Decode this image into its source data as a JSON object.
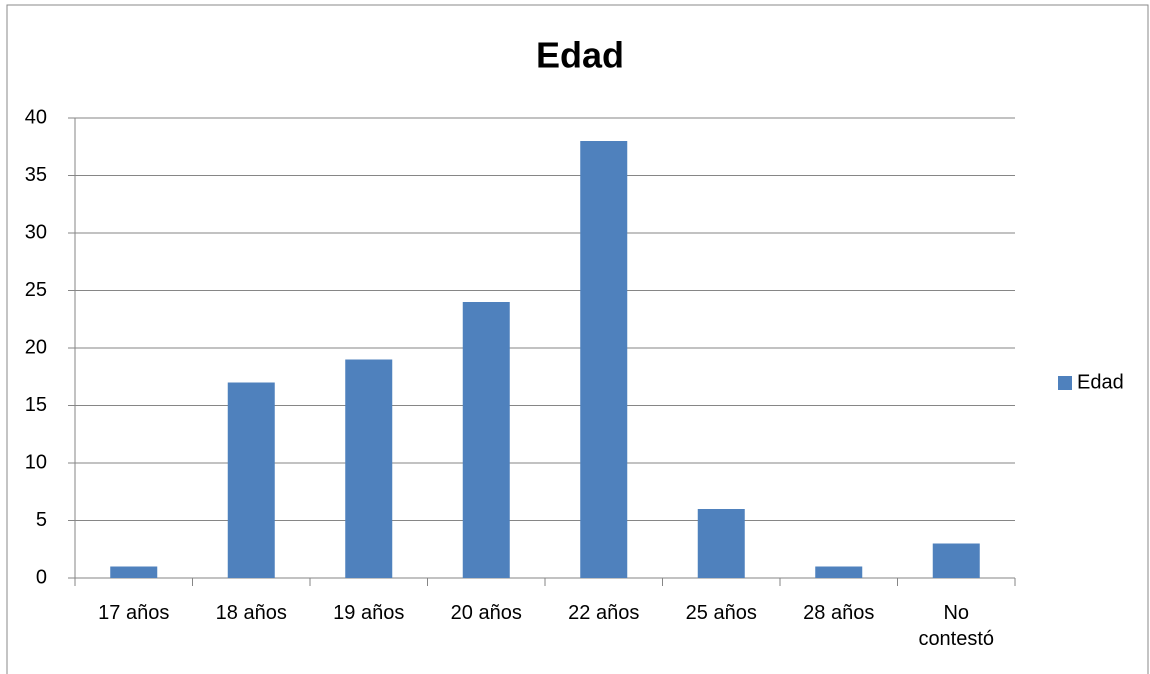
{
  "chart_data": {
    "type": "bar",
    "title": "Edad",
    "categories": [
      "17 años",
      "18 años",
      "19 años",
      "20 años",
      "22 años",
      "25 años",
      "28 años",
      "No contestó"
    ],
    "series": [
      {
        "name": "Edad",
        "color": "#4f81bd",
        "values": [
          1,
          17,
          19,
          24,
          38,
          6,
          1,
          3
        ]
      }
    ],
    "ylim": [
      0,
      40
    ],
    "yticks": [
      0,
      5,
      10,
      15,
      20,
      25,
      30,
      35,
      40
    ],
    "grid": true,
    "legend": "right"
  }
}
